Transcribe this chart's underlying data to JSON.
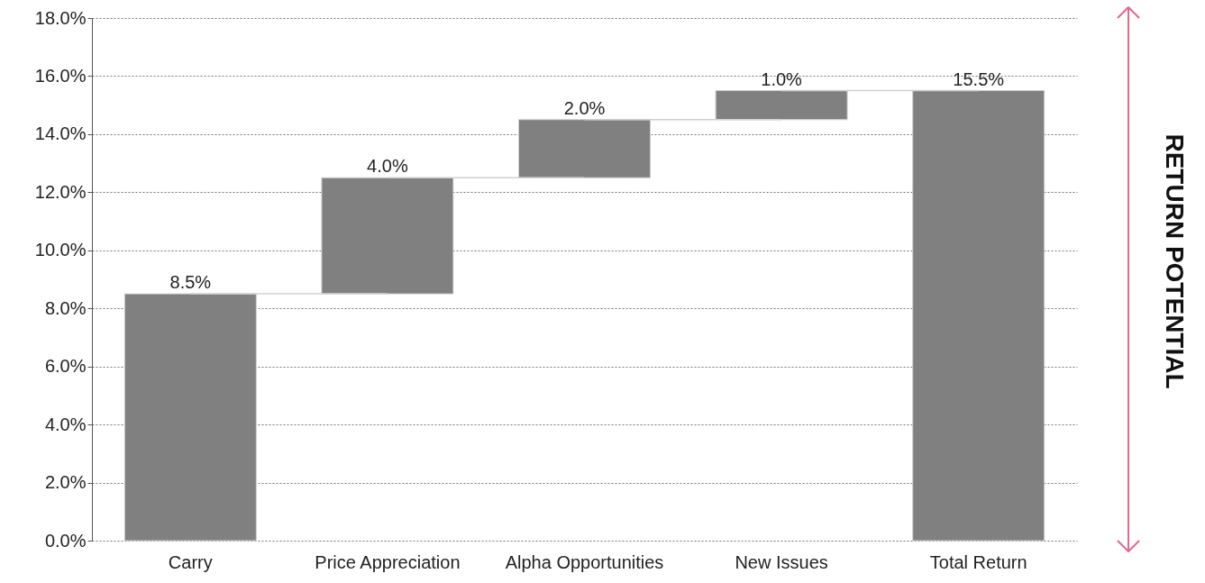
{
  "chart_data": {
    "type": "bar",
    "categories": [
      "Carry",
      "Price Appreciation",
      "Alpha Opportunities",
      "New Issues",
      "Total Return"
    ],
    "values": [
      8.5,
      4.0,
      2.0,
      1.0,
      15.5
    ],
    "base": [
      0,
      8.5,
      12.5,
      14.5,
      0
    ],
    "value_labels": [
      "8.5%",
      "4.0%",
      "2.0%",
      "1.0%",
      "15.5%"
    ],
    "color": "#808080",
    "ylim": [
      0,
      18
    ],
    "yticks": [
      {
        "value": 0,
        "label": "0.0%"
      },
      {
        "value": 2,
        "label": "2.0%"
      },
      {
        "value": 4,
        "label": "4.0%"
      },
      {
        "value": 6,
        "label": "6.0%"
      },
      {
        "value": 8,
        "label": "8.0%"
      },
      {
        "value": 10,
        "label": "10.0%"
      },
      {
        "value": 12,
        "label": "12.0%"
      },
      {
        "value": 14,
        "label": "14.0%"
      },
      {
        "value": 16,
        "label": "16.0%"
      },
      {
        "value": 18,
        "label": "18.0%"
      }
    ],
    "grid": "y",
    "annotations": [
      "RETURN POTENTIAL"
    ]
  }
}
